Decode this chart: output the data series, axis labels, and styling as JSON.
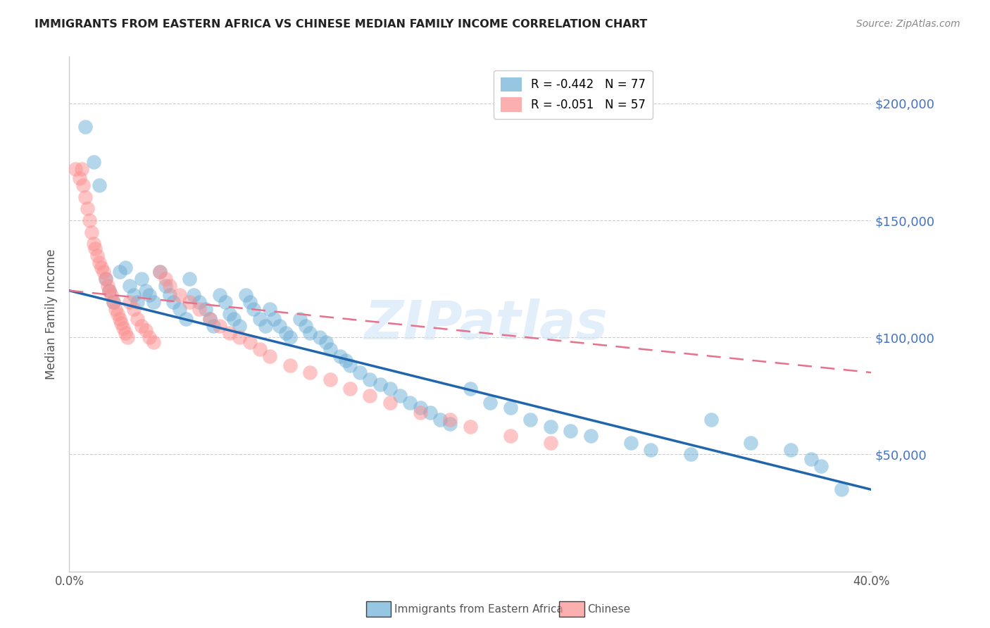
{
  "title": "IMMIGRANTS FROM EASTERN AFRICA VS CHINESE MEDIAN FAMILY INCOME CORRELATION CHART",
  "source": "Source: ZipAtlas.com",
  "ylabel": "Median Family Income",
  "yticks": [
    0,
    50000,
    100000,
    150000,
    200000
  ],
  "ytick_labels": [
    "",
    "$50,000",
    "$100,000",
    "$150,000",
    "$200,000"
  ],
  "xlim": [
    0.0,
    0.4
  ],
  "ylim": [
    0,
    220000
  ],
  "xticks": [
    0.0,
    0.4
  ],
  "xtick_labels": [
    "0.0%",
    "40.0%"
  ],
  "legend_line1": "R = -0.442   N = 77",
  "legend_line2": "R = -0.051   N = 57",
  "blue_color": "#6BAED6",
  "pink_color": "#FC8D8D",
  "trendline_blue": "#2166AC",
  "trendline_pink": "#E8708A",
  "watermark": "ZIPatlas",
  "blue_scatter_x": [
    0.008,
    0.012,
    0.015,
    0.018,
    0.02,
    0.022,
    0.025,
    0.028,
    0.03,
    0.032,
    0.034,
    0.036,
    0.038,
    0.04,
    0.042,
    0.045,
    0.048,
    0.05,
    0.052,
    0.055,
    0.058,
    0.06,
    0.062,
    0.065,
    0.068,
    0.07,
    0.072,
    0.075,
    0.078,
    0.08,
    0.082,
    0.085,
    0.088,
    0.09,
    0.092,
    0.095,
    0.098,
    0.1,
    0.102,
    0.105,
    0.108,
    0.11,
    0.115,
    0.118,
    0.12,
    0.125,
    0.128,
    0.13,
    0.135,
    0.138,
    0.14,
    0.145,
    0.15,
    0.155,
    0.16,
    0.165,
    0.17,
    0.175,
    0.18,
    0.185,
    0.19,
    0.2,
    0.21,
    0.22,
    0.23,
    0.24,
    0.25,
    0.26,
    0.28,
    0.29,
    0.31,
    0.32,
    0.34,
    0.36,
    0.37,
    0.375,
    0.385
  ],
  "blue_scatter_y": [
    190000,
    175000,
    165000,
    125000,
    120000,
    115000,
    128000,
    130000,
    122000,
    118000,
    115000,
    125000,
    120000,
    118000,
    115000,
    128000,
    122000,
    118000,
    115000,
    112000,
    108000,
    125000,
    118000,
    115000,
    112000,
    108000,
    105000,
    118000,
    115000,
    110000,
    108000,
    105000,
    118000,
    115000,
    112000,
    108000,
    105000,
    112000,
    108000,
    105000,
    102000,
    100000,
    108000,
    105000,
    102000,
    100000,
    98000,
    95000,
    92000,
    90000,
    88000,
    85000,
    82000,
    80000,
    78000,
    75000,
    72000,
    70000,
    68000,
    65000,
    63000,
    78000,
    72000,
    70000,
    65000,
    62000,
    60000,
    58000,
    55000,
    52000,
    50000,
    65000,
    55000,
    52000,
    48000,
    45000,
    35000
  ],
  "pink_scatter_x": [
    0.003,
    0.005,
    0.006,
    0.007,
    0.008,
    0.009,
    0.01,
    0.011,
    0.012,
    0.013,
    0.014,
    0.015,
    0.016,
    0.017,
    0.018,
    0.019,
    0.02,
    0.021,
    0.022,
    0.023,
    0.024,
    0.025,
    0.026,
    0.027,
    0.028,
    0.029,
    0.03,
    0.032,
    0.034,
    0.036,
    0.038,
    0.04,
    0.042,
    0.045,
    0.048,
    0.05,
    0.055,
    0.06,
    0.065,
    0.07,
    0.075,
    0.08,
    0.085,
    0.09,
    0.095,
    0.1,
    0.11,
    0.12,
    0.13,
    0.14,
    0.15,
    0.16,
    0.175,
    0.19,
    0.2,
    0.22,
    0.24
  ],
  "pink_scatter_y": [
    172000,
    168000,
    172000,
    165000,
    160000,
    155000,
    150000,
    145000,
    140000,
    138000,
    135000,
    132000,
    130000,
    128000,
    125000,
    122000,
    120000,
    118000,
    115000,
    112000,
    110000,
    108000,
    106000,
    104000,
    102000,
    100000,
    115000,
    112000,
    108000,
    105000,
    103000,
    100000,
    98000,
    128000,
    125000,
    122000,
    118000,
    115000,
    112000,
    108000,
    105000,
    102000,
    100000,
    98000,
    95000,
    92000,
    88000,
    85000,
    82000,
    78000,
    75000,
    72000,
    68000,
    65000,
    62000,
    58000,
    55000
  ]
}
